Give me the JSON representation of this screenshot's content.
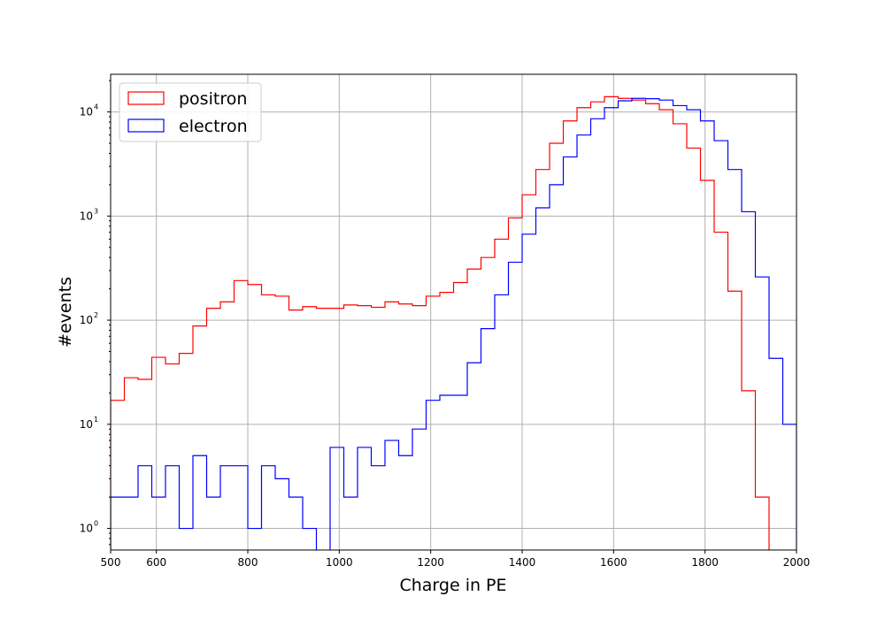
{
  "chart_data": {
    "type": "histogram",
    "xlabel": "Charge in PE",
    "ylabel": "#events",
    "xlim": [
      500,
      2000
    ],
    "ylim": [
      0.62,
      23000
    ],
    "yscale": "log",
    "grid": true,
    "legend_position": "top-left",
    "x_ticks": [
      600,
      800,
      1000,
      1200,
      1400,
      1600,
      1800,
      2000
    ],
    "y_ticks": [
      {
        "value": 1,
        "mantissa": "10",
        "exp": "0"
      },
      {
        "value": 10,
        "mantissa": "10",
        "exp": "1"
      },
      {
        "value": 100,
        "mantissa": "10",
        "exp": "2"
      },
      {
        "value": 1000,
        "mantissa": "10",
        "exp": "3"
      },
      {
        "value": 10000,
        "mantissa": "10",
        "exp": "4"
      }
    ],
    "bin_start": 500,
    "bin_width": 30,
    "series": [
      {
        "name": "positron",
        "color": "#ff0000",
        "values": [
          17,
          28,
          27,
          44,
          38,
          48,
          88,
          130,
          150,
          240,
          220,
          175,
          170,
          125,
          135,
          130,
          130,
          140,
          138,
          133,
          150,
          143,
          138,
          170,
          185,
          230,
          310,
          400,
          600,
          960,
          1600,
          2800,
          5000,
          8200,
          11000,
          12500,
          14000,
          13500,
          13000,
          12000,
          10500,
          7700,
          4500,
          2200,
          700,
          190,
          21,
          2,
          0,
          0
        ]
      },
      {
        "name": "electron",
        "color": "#0000ff",
        "values": [
          2,
          2,
          4,
          2,
          4,
          1,
          5,
          2,
          4,
          4,
          1,
          4,
          3,
          2,
          1,
          0,
          6,
          2,
          6,
          4,
          7,
          5,
          9,
          17,
          19,
          19,
          39,
          83,
          175,
          360,
          670,
          1200,
          2000,
          3700,
          6000,
          8600,
          11000,
          12800,
          13500,
          13400,
          13000,
          11500,
          10500,
          8200,
          5300,
          2800,
          1100,
          260,
          43,
          10
        ]
      }
    ]
  }
}
